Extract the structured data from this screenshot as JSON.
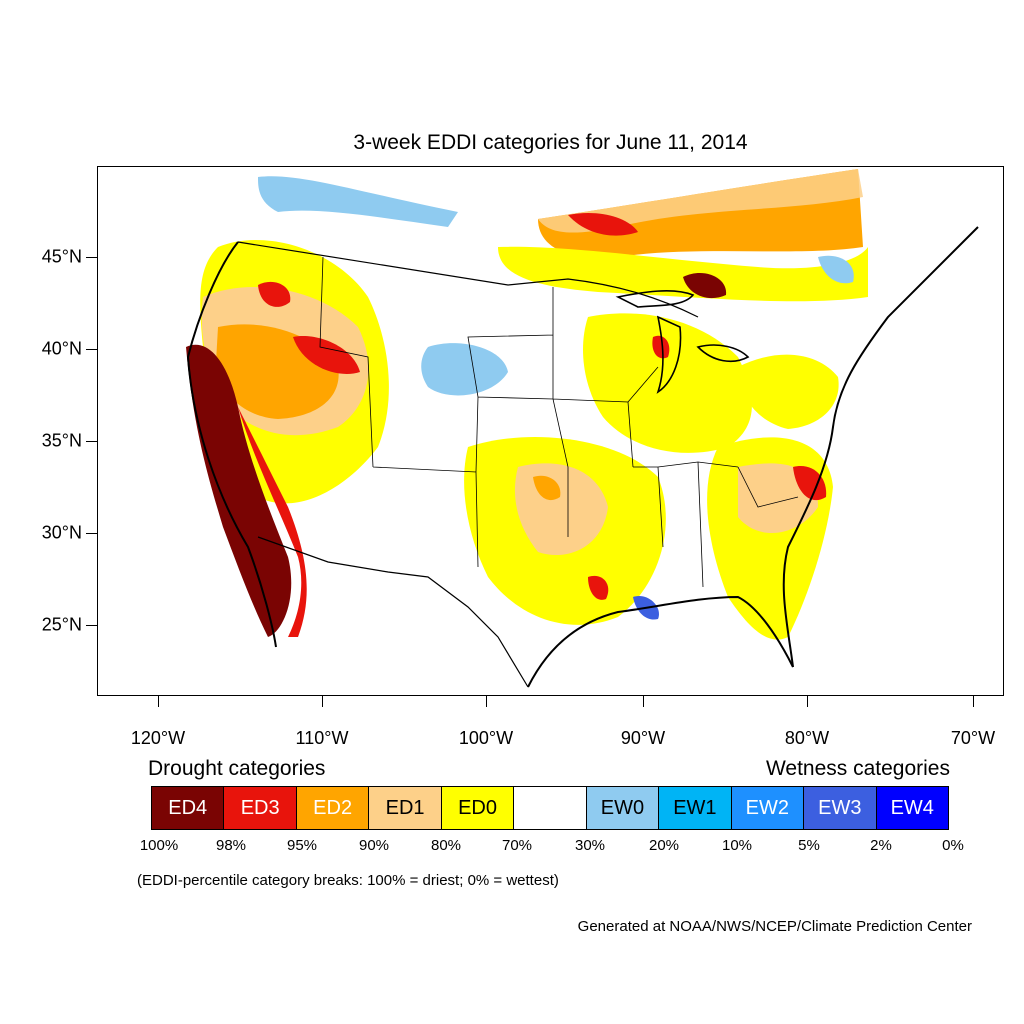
{
  "title": "3-week EDDI categories for June 11, 2014",
  "lat_labels": [
    "45°N",
    "40°N",
    "35°N",
    "30°N",
    "25°N"
  ],
  "lon_labels": [
    "120°W",
    "110°W",
    "100°W",
    "90°W",
    "80°W",
    "70°W"
  ],
  "legend": {
    "drought_heading": "Drought categories",
    "wetness_heading": "Wetness categories",
    "categories": [
      {
        "label": "ED4",
        "color": "#7a0403",
        "text_color": "#ffffff"
      },
      {
        "label": "ED3",
        "color": "#e8140c",
        "text_color": "#ffffff"
      },
      {
        "label": "ED2",
        "color": "#ffa500",
        "text_color": "#ffffff"
      },
      {
        "label": "ED1",
        "color": "#fdd089",
        "text_color": "#000000"
      },
      {
        "label": "ED0",
        "color": "#ffff00",
        "text_color": "#000000"
      },
      {
        "label": "",
        "color": "#ffffff",
        "text_color": "#000000"
      },
      {
        "label": "EW0",
        "color": "#8fcbf0",
        "text_color": "#000000"
      },
      {
        "label": "EW1",
        "color": "#00b4f5",
        "text_color": "#000000"
      },
      {
        "label": "EW2",
        "color": "#1e90ff",
        "text_color": "#ffffff"
      },
      {
        "label": "EW3",
        "color": "#3c5fe0",
        "text_color": "#ffffff"
      },
      {
        "label": "EW4",
        "color": "#0000ff",
        "text_color": "#ffffff"
      }
    ],
    "breaks": [
      "100%",
      "98%",
      "95%",
      "90%",
      "80%",
      "70%",
      "30%",
      "20%",
      "10%",
      "5%",
      "2%",
      "0%"
    ]
  },
  "breaks_note": "(EDDI-percentile category breaks: 100% = driest; 0% = wettest)",
  "credit": "Generated at NOAA/NWS/NCEP/Climate Prediction Center"
}
